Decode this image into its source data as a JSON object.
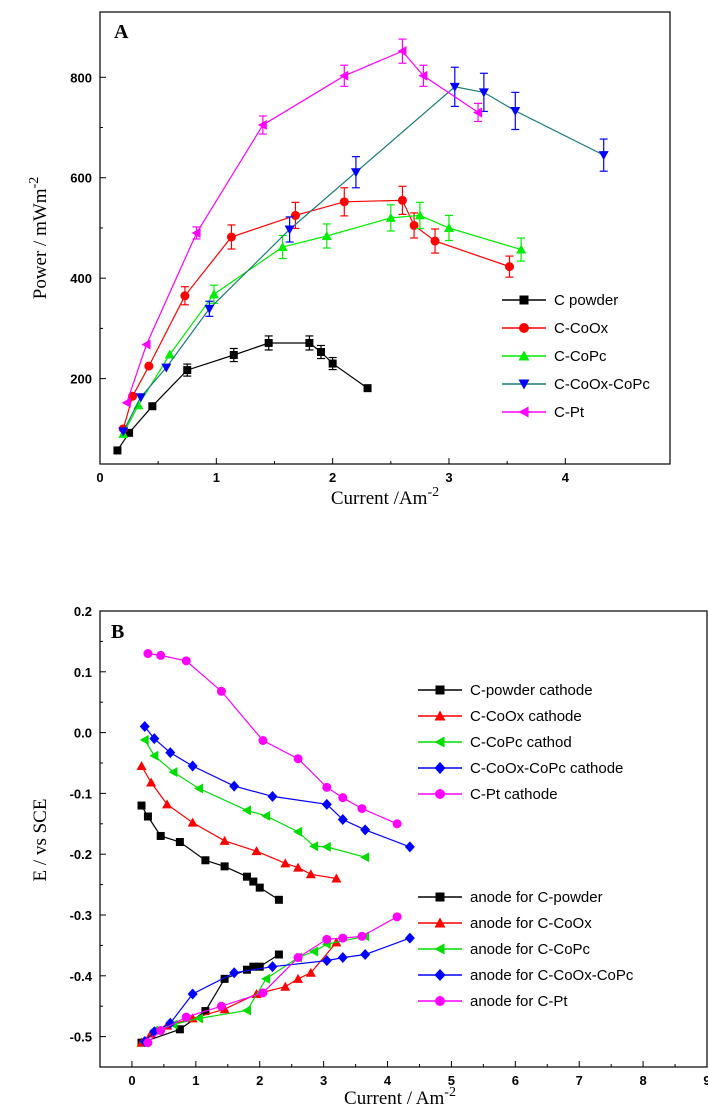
{
  "chart_data": [
    {
      "type": "line",
      "panel_label": "A",
      "xlabel": "Current /Am",
      "xlabel_sup": "-2",
      "ylabel": "Power / mWm",
      "ylabel_sup": "-2",
      "xlim": [
        0,
        4.9
      ],
      "ylim": [
        30,
        930
      ],
      "xticks": [
        0,
        1,
        2,
        3,
        4
      ],
      "yticks": [
        200,
        400,
        600,
        800
      ],
      "legend_position": "bottom-right",
      "series": [
        {
          "name": "C powder",
          "color": "#000000",
          "marker": "square",
          "x": [
            0.15,
            0.25,
            0.45,
            0.75,
            1.15,
            1.45,
            1.8,
            1.9,
            2.0,
            2.3
          ],
          "y": [
            57,
            92,
            145,
            217,
            247,
            271,
            271,
            253,
            230,
            181
          ],
          "err": [
            0,
            0,
            0,
            12,
            13,
            14,
            14,
            13,
            12,
            0
          ]
        },
        {
          "name": "C-CoOx",
          "color": "#ff0000",
          "marker": "circle",
          "x": [
            0.2,
            0.28,
            0.42,
            0.73,
            1.13,
            1.68,
            2.1,
            2.6,
            2.7,
            2.88,
            3.52
          ],
          "y": [
            100,
            165,
            225,
            365,
            482,
            525,
            552,
            555,
            505,
            474,
            423
          ],
          "err": [
            0,
            0,
            0,
            18,
            24,
            26,
            28,
            28,
            25,
            24,
            21
          ]
        },
        {
          "name": "C-CoPc",
          "color": "#00ee00",
          "marker": "triangle-up",
          "x": [
            0.2,
            0.33,
            0.6,
            0.98,
            1.57,
            1.95,
            2.5,
            2.75,
            3.0,
            3.62
          ],
          "y": [
            90,
            147,
            248,
            368,
            462,
            484,
            520,
            525,
            500,
            457
          ],
          "err": [
            0,
            0,
            0,
            18,
            23,
            24,
            26,
            26,
            25,
            23
          ]
        },
        {
          "name": "C-CoOx-CoPc",
          "color": "#0000ff",
          "marker": "triangle-down",
          "line_color": "#1a7a7a",
          "x": [
            0.2,
            0.35,
            0.57,
            0.94,
            1.63,
            2.2,
            3.05,
            3.3,
            3.57,
            4.33
          ],
          "y": [
            95,
            163,
            222,
            339,
            497,
            611,
            781,
            770,
            733,
            645
          ],
          "err": [
            0,
            0,
            0,
            15,
            25,
            31,
            39,
            38,
            37,
            32
          ]
        },
        {
          "name": "C-Pt",
          "color": "#ff00ff",
          "marker": "triangle-left",
          "x": [
            0.23,
            0.4,
            0.83,
            1.4,
            2.1,
            2.6,
            2.78,
            3.25
          ],
          "y": [
            152,
            268,
            490,
            705,
            803,
            852,
            803,
            730
          ],
          "err": [
            0,
            0,
            12,
            18,
            21,
            24,
            21,
            18
          ]
        }
      ]
    },
    {
      "type": "line",
      "panel_label": "B",
      "xlabel": "Current / Am",
      "xlabel_sup": "-2",
      "ylabel": "E / vs SCE",
      "xlim": [
        -0.5,
        9
      ],
      "ylim": [
        -0.55,
        0.2
      ],
      "xticks": [
        0,
        1,
        2,
        3,
        4,
        5,
        6,
        7,
        8,
        9
      ],
      "yticks": [
        -0.5,
        -0.4,
        -0.3,
        -0.2,
        -0.1,
        0.0,
        0.1,
        0.2
      ],
      "ytick_labels": [
        "-0.5",
        "-0.4",
        "-0.3",
        "-0.2",
        "-0.1",
        "0.0",
        "0.1",
        "0.2"
      ],
      "legend_position": "right",
      "series": [
        {
          "name": "C-powder cathode",
          "color": "#000000",
          "marker": "square",
          "x": [
            0.15,
            0.25,
            0.45,
            0.75,
            1.15,
            1.45,
            1.8,
            1.9,
            2.0,
            2.3
          ],
          "y": [
            -0.12,
            -0.138,
            -0.17,
            -0.18,
            -0.21,
            -0.22,
            -0.237,
            -0.245,
            -0.255,
            -0.275
          ]
        },
        {
          "name": "C-CoOx cathode",
          "color": "#ff0000",
          "marker": "triangle-up",
          "x": [
            0.15,
            0.3,
            0.55,
            0.95,
            1.45,
            1.95,
            2.4,
            2.6,
            2.8,
            3.2
          ],
          "y": [
            -0.055,
            -0.082,
            -0.118,
            -0.148,
            -0.178,
            -0.195,
            -0.215,
            -0.222,
            -0.233,
            -0.24
          ]
        },
        {
          "name": "C-CoPc cathod",
          "color": "#00dd00",
          "marker": "triangle-left",
          "x": [
            0.2,
            0.35,
            0.65,
            1.05,
            1.8,
            2.1,
            2.6,
            2.85,
            3.05,
            3.65
          ],
          "y": [
            -0.012,
            -0.038,
            -0.065,
            -0.092,
            -0.128,
            -0.137,
            -0.163,
            -0.187,
            -0.188,
            -0.205
          ]
        },
        {
          "name": "C-CoOx-CoPc cathode",
          "color": "#0000ff",
          "marker": "diamond",
          "x": [
            0.2,
            0.35,
            0.6,
            0.95,
            1.6,
            2.2,
            3.05,
            3.3,
            3.65,
            4.35
          ],
          "y": [
            0.01,
            -0.01,
            -0.033,
            -0.055,
            -0.088,
            -0.105,
            -0.118,
            -0.143,
            -0.16,
            -0.188
          ]
        },
        {
          "name": "C-Pt cathode",
          "color": "#ff00ff",
          "marker": "circle",
          "x": [
            0.25,
            0.45,
            0.85,
            1.4,
            2.05,
            2.6,
            3.05,
            3.3,
            3.6,
            4.15
          ],
          "y": [
            0.13,
            0.127,
            0.118,
            0.068,
            -0.013,
            -0.043,
            -0.09,
            -0.107,
            -0.125,
            -0.15
          ]
        },
        {
          "name": "anode for C-powder",
          "color": "#000000",
          "marker": "square",
          "x": [
            0.15,
            0.75,
            1.15,
            1.45,
            1.8,
            1.9,
            2.0,
            2.3
          ],
          "y": [
            -0.51,
            -0.488,
            -0.458,
            -0.405,
            -0.39,
            -0.385,
            -0.385,
            -0.365
          ]
        },
        {
          "name": "anode for C-CoOx",
          "color": "#ff0000",
          "marker": "triangle-up",
          "x": [
            0.15,
            0.3,
            0.55,
            0.95,
            1.45,
            1.95,
            2.4,
            2.6,
            2.8,
            3.2
          ],
          "y": [
            -0.51,
            -0.495,
            -0.482,
            -0.47,
            -0.455,
            -0.43,
            -0.418,
            -0.405,
            -0.395,
            -0.345
          ]
        },
        {
          "name": "anode for C-CoPc",
          "color": "#00dd00",
          "marker": "triangle-left",
          "x": [
            0.2,
            0.35,
            0.65,
            1.05,
            1.8,
            2.1,
            2.6,
            2.85,
            3.05,
            3.65
          ],
          "y": [
            -0.51,
            -0.49,
            -0.48,
            -0.47,
            -0.457,
            -0.405,
            -0.37,
            -0.36,
            -0.348,
            -0.335
          ]
        },
        {
          "name": "anode for C-CoOx-CoPc",
          "color": "#0000ff",
          "marker": "diamond",
          "x": [
            0.2,
            0.35,
            0.6,
            0.95,
            1.6,
            2.2,
            3.05,
            3.3,
            3.65,
            4.35
          ],
          "y": [
            -0.508,
            -0.492,
            -0.478,
            -0.43,
            -0.395,
            -0.385,
            -0.375,
            -0.37,
            -0.365,
            -0.338
          ]
        },
        {
          "name": "anode for C-Pt",
          "color": "#ff00ff",
          "marker": "circle",
          "x": [
            0.25,
            0.45,
            0.85,
            1.4,
            2.05,
            2.6,
            3.05,
            3.3,
            3.6,
            4.15
          ],
          "y": [
            -0.51,
            -0.49,
            -0.468,
            -0.45,
            -0.428,
            -0.37,
            -0.34,
            -0.338,
            -0.335,
            -0.303
          ]
        }
      ]
    }
  ]
}
